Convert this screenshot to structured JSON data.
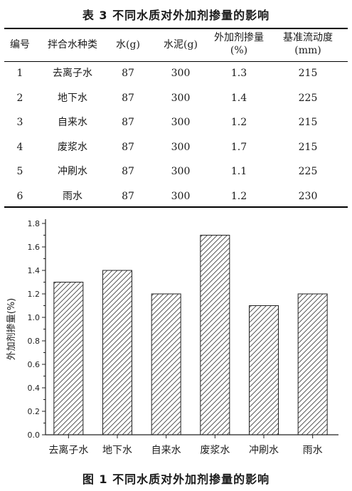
{
  "table": {
    "title": "表 3   不同水质对外加剂掺量的影响",
    "headers": [
      "编号",
      "拌合水种类",
      "水(g)",
      "水泥(g)",
      "外加剂掺量\n(%)",
      "基准流动度\n(mm)"
    ],
    "rows": [
      [
        "1",
        "去离子水",
        "87",
        "300",
        "1.3",
        "215"
      ],
      [
        "2",
        "地下水",
        "87",
        "300",
        "1.4",
        "225"
      ],
      [
        "3",
        "自来水",
        "87",
        "300",
        "1.2",
        "215"
      ],
      [
        "4",
        "废浆水",
        "87",
        "300",
        "1.7",
        "215"
      ],
      [
        "5",
        "冲刷水",
        "87",
        "300",
        "1.1",
        "225"
      ],
      [
        "6",
        "雨水",
        "87",
        "300",
        "1.2",
        "230"
      ]
    ]
  },
  "chart_data": {
    "type": "bar",
    "categories": [
      "去离子水",
      "地下水",
      "自来水",
      "废浆水",
      "冲刷水",
      "雨水"
    ],
    "values": [
      1.3,
      1.4,
      1.2,
      1.7,
      1.1,
      1.2
    ],
    "ylabel": "外加剂掺量(%)",
    "xlabel": "",
    "ylim": [
      0,
      1.8
    ],
    "yticks": [
      "0.0",
      "0.2",
      "0.4",
      "0.6",
      "0.8",
      "1.0",
      "1.2",
      "1.4",
      "1.6",
      "1.8"
    ],
    "grid": false,
    "fill": "diagonal-hatch",
    "colors": {
      "bar_stroke": "#222222",
      "hatch": "#444444"
    }
  },
  "figure": {
    "caption": "图 1   不同水质对外加剂掺量的影响"
  }
}
